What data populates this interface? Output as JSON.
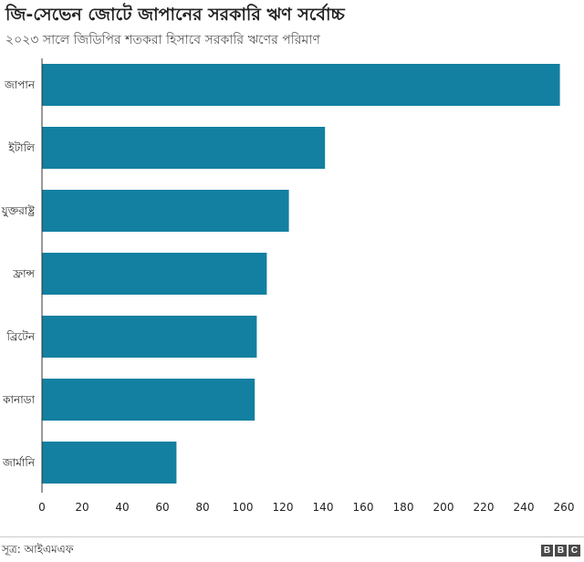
{
  "title": "জি-সেভেন জোটে জাপানের সরকারি ঋণ সর্বোচ্চ",
  "subtitle": "২০২৩ সালে জিডিপির শতকরা হিসাবে সরকারি ঋণের পরিমাণ",
  "source": "সূত্র: আইএমএফ",
  "logo_letters": [
    "B",
    "B",
    "C"
  ],
  "colors": {
    "bar": "#1380A1",
    "axis": "#333333",
    "text": "#222222"
  },
  "chart_data": {
    "type": "bar",
    "orientation": "horizontal",
    "categories": [
      "জাপান",
      "ইটালি",
      "যুক্তরাষ্ট্র",
      "ফ্রান্স",
      "ব্রিটেন",
      "কানাডা",
      "জার্মানি"
    ],
    "values": [
      258,
      141,
      123,
      112,
      107,
      106,
      67
    ],
    "xlim": [
      0,
      260
    ],
    "xticks": [
      0,
      20,
      40,
      60,
      80,
      100,
      120,
      140,
      160,
      180,
      200,
      220,
      240,
      260
    ],
    "grid": false
  }
}
